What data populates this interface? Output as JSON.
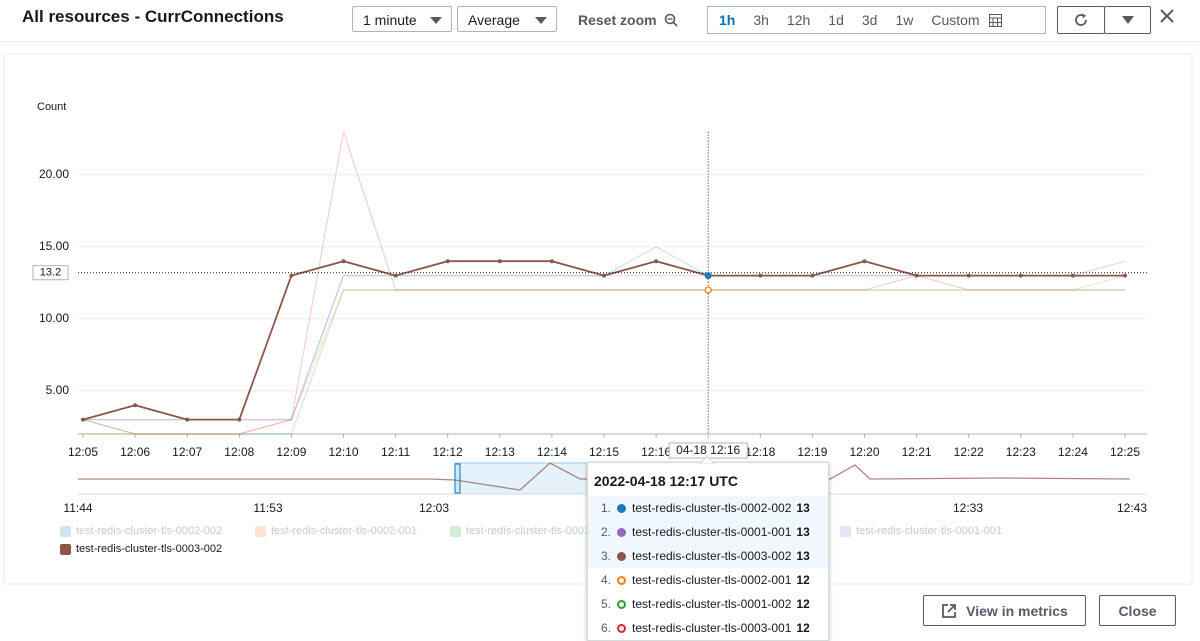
{
  "header": {
    "title": "All resources - CurrConnections",
    "period": "1 minute",
    "statistic": "Average",
    "reset_zoom": "Reset zoom",
    "ranges": [
      "1h",
      "3h",
      "12h",
      "1d",
      "3d",
      "1w",
      "Custom"
    ]
  },
  "chart_data": {
    "type": "line",
    "y_label": "Count",
    "categories": [
      "12:05",
      "12:06",
      "12:07",
      "12:08",
      "12:09",
      "12:10",
      "12:11",
      "12:12",
      "12:13",
      "12:14",
      "12:15",
      "12:16",
      null,
      "12:18",
      "12:19",
      "12:20",
      "12:21",
      "12:22",
      "12:23",
      "12:24",
      "12:25"
    ],
    "ylim": [
      2,
      23
    ],
    "yticks": [
      {
        "value": 5,
        "label": "5.00"
      },
      {
        "value": 10,
        "label": "10.00"
      },
      {
        "value": 15,
        "label": "15.00"
      },
      {
        "value": 20,
        "label": "20.00"
      }
    ],
    "grid": true,
    "crosshair": {
      "x_label": "04-18 12:16",
      "y_value": 13.2
    },
    "series": [
      {
        "name": "test-redis-cluster-tls-0002-002",
        "color": "#1f77b4",
        "visible": false,
        "values": [
          3,
          3,
          3,
          3,
          3,
          13,
          13,
          13,
          13,
          13,
          13,
          15,
          13,
          13,
          13,
          13,
          13,
          13,
          13,
          13,
          14
        ]
      },
      {
        "name": "test-redis-cluster-tls-0002-001",
        "color": "#ff7f0e",
        "visible": false,
        "values": [
          2,
          2,
          2,
          2,
          3,
          12,
          12,
          12,
          12,
          12,
          12,
          12,
          12,
          12,
          12,
          12,
          12,
          12,
          12,
          12,
          13
        ]
      },
      {
        "name": "test-redis-cluster-tls-0001-002",
        "color": "#2ca02c",
        "visible": false,
        "values": [
          3,
          2,
          2,
          2,
          2,
          12,
          12,
          12,
          12,
          12,
          12,
          12,
          12,
          12,
          12,
          12,
          12,
          12,
          12,
          12,
          12
        ]
      },
      {
        "name": "test-redis-cluster-tls-0003-001",
        "color": "#d62728",
        "visible": false,
        "values": [
          3,
          2,
          2,
          2,
          3,
          23,
          12,
          12,
          12,
          12,
          12,
          12,
          12,
          12,
          12,
          12,
          13,
          12,
          12,
          12,
          12
        ]
      },
      {
        "name": "test-redis-cluster-tls-0001-001",
        "color": "#9467bd",
        "visible": false,
        "values": [
          3,
          3,
          3,
          3,
          3,
          13,
          13,
          13,
          13,
          13,
          13,
          13,
          13,
          13,
          13,
          13,
          13,
          13,
          13,
          13,
          13
        ]
      },
      {
        "name": "test-redis-cluster-tls-0003-002",
        "color": "#8c564b",
        "visible": true,
        "values": [
          3,
          4,
          3,
          3,
          13,
          14,
          13,
          14,
          14,
          14,
          13,
          14,
          13,
          13,
          13,
          14,
          13,
          13,
          13,
          13,
          13
        ]
      }
    ]
  },
  "navigator": {
    "labels": [
      "11:44",
      "11:53",
      "12:03",
      "12:33",
      "12:43"
    ]
  },
  "tooltip": {
    "title": "2022-04-18 12:17 UTC",
    "rows": [
      {
        "rank": "1.",
        "name": "test-redis-cluster-tls-0002-002",
        "value": 13,
        "color": "#1f77b4",
        "filled": true
      },
      {
        "rank": "2.",
        "name": "test-redis-cluster-tls-0001-001",
        "value": 13,
        "color": "#9467bd",
        "filled": true
      },
      {
        "rank": "3.",
        "name": "test-redis-cluster-tls-0003-002",
        "value": 13,
        "color": "#8c564b",
        "filled": true
      },
      {
        "rank": "4.",
        "name": "test-redis-cluster-tls-0002-001",
        "value": 12,
        "color": "#ff7f0e",
        "filled": false
      },
      {
        "rank": "5.",
        "name": "test-redis-cluster-tls-0001-002",
        "value": 12,
        "color": "#2ca02c",
        "filled": false
      },
      {
        "rank": "6.",
        "name": "test-redis-cluster-tls-0003-001",
        "value": 12,
        "color": "#d62728",
        "filled": false
      }
    ]
  },
  "footer": {
    "view_in_metrics": "View in metrics",
    "close": "Close"
  }
}
